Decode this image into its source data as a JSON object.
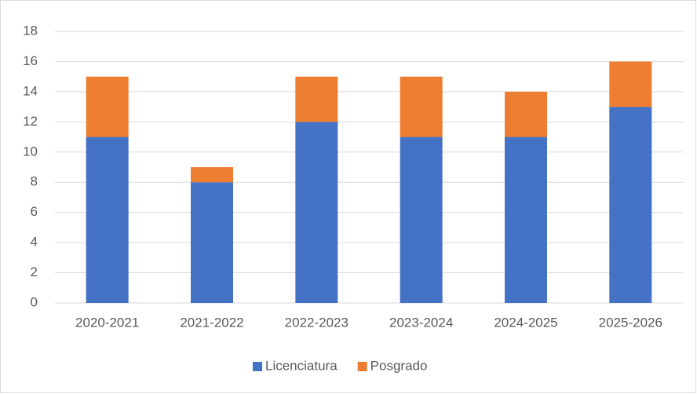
{
  "chart_data": {
    "type": "bar",
    "stacked": true,
    "categories": [
      "2020-2021",
      "2021-2022",
      "2022-2023",
      "2023-2024",
      "2024-2025",
      "2025-2026"
    ],
    "series": [
      {
        "name": "Licenciatura",
        "color": "#4472c4",
        "values": [
          11,
          8,
          12,
          11,
          11,
          13
        ]
      },
      {
        "name": "Posgrado",
        "color": "#ed7d31",
        "values": [
          4,
          1,
          3,
          4,
          3,
          3
        ]
      }
    ],
    "ylim": [
      0,
      18
    ],
    "yticks": [
      0,
      2,
      4,
      6,
      8,
      10,
      12,
      14,
      16,
      18
    ],
    "grid": true,
    "legend": "bottom"
  }
}
